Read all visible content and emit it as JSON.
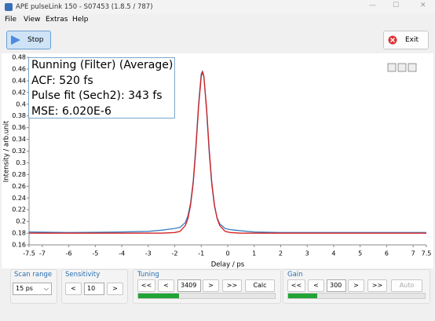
{
  "window": {
    "title": "APE pulseLink 150 - S07453 (1.8.5 / 787)"
  },
  "menu": [
    "File",
    "View",
    "Extras",
    "Help"
  ],
  "toolbar": {
    "stop": "Stop",
    "exit": "Exit"
  },
  "chart_data": {
    "type": "line",
    "info": [
      "Running (Filter) (Average)",
      "ACF: 520 fs",
      "Pulse fit (Sech2): 343 fs",
      "MSE: 6.020E-6"
    ],
    "x_label": "Delay / ps",
    "y_label": "Intensity / arb.unit",
    "x": [
      -7.5,
      -6,
      -4,
      -3,
      -2.5,
      -2,
      -1.8,
      -1.6,
      -1.5,
      -1.4,
      -1.3,
      -1.2,
      -1.1,
      -1,
      -0.95,
      -0.9,
      -0.8,
      -0.7,
      -0.6,
      -0.5,
      -0.4,
      -0.3,
      -0.1,
      0.1,
      0.5,
      1,
      2,
      4,
      6,
      7.5
    ],
    "series": [
      {
        "color": "#3a7fc0",
        "values": [
          0.182,
          0.181,
          0.182,
          0.183,
          0.185,
          0.188,
          0.19,
          0.198,
          0.21,
          0.232,
          0.27,
          0.33,
          0.4,
          0.452,
          0.456,
          0.448,
          0.39,
          0.318,
          0.262,
          0.226,
          0.206,
          0.196,
          0.188,
          0.186,
          0.184,
          0.182,
          0.181,
          0.181,
          0.181,
          0.181
        ]
      },
      {
        "color": "#d42020",
        "values": [
          0.18,
          0.18,
          0.18,
          0.18,
          0.18,
          0.181,
          0.183,
          0.193,
          0.205,
          0.228,
          0.266,
          0.324,
          0.395,
          0.447,
          0.455,
          0.447,
          0.395,
          0.324,
          0.266,
          0.228,
          0.205,
          0.193,
          0.183,
          0.181,
          0.18,
          0.18,
          0.18,
          0.18,
          0.18,
          0.18
        ]
      }
    ],
    "xlim": [
      -7.5,
      7.5
    ],
    "ylim": [
      0.16,
      0.48
    ],
    "xticks": [
      -7.5,
      -7,
      -6,
      -5,
      -4,
      -3,
      -2,
      -1,
      0,
      1,
      2,
      3,
      4,
      5,
      6,
      7,
      7.5
    ],
    "yticks": [
      0.16,
      0.18,
      0.2,
      0.22,
      0.24,
      0.26,
      0.28,
      0.3,
      0.32,
      0.34,
      0.36,
      0.38,
      0.4,
      0.42,
      0.44,
      0.46,
      0.48
    ]
  },
  "controls": {
    "scan_range": {
      "label": "Scan range",
      "value": "15 ps"
    },
    "sensitivity": {
      "label": "Sensitivity",
      "buttons": [
        "<",
        ">"
      ],
      "value": 10
    },
    "tuning": {
      "label": "Tuning",
      "buttons": [
        "<<",
        "<",
        ">",
        ">>"
      ],
      "value": 3409,
      "action": "Calc",
      "progress": 30
    },
    "gain": {
      "label": "Gain",
      "buttons": [
        "<<",
        "<",
        ">",
        ">>"
      ],
      "value": 300,
      "action": "Auto",
      "progress": 21
    }
  }
}
